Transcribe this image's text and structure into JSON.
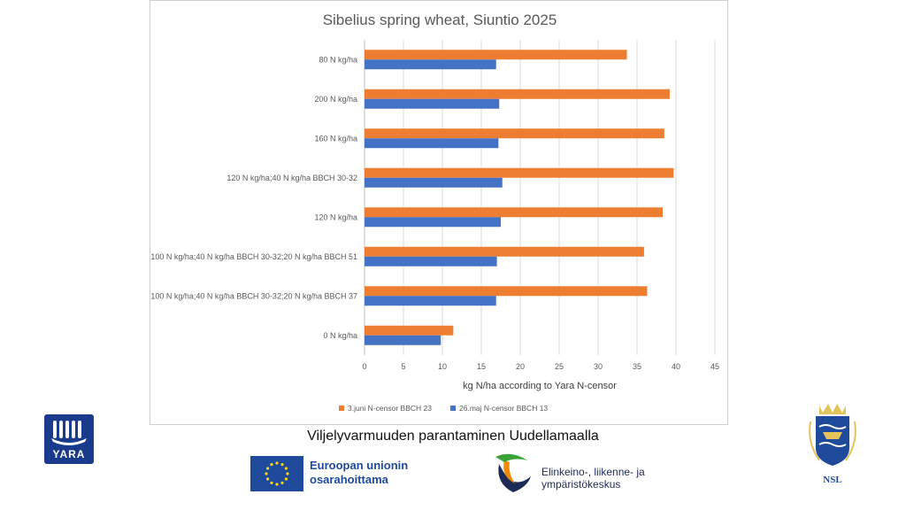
{
  "chart_data": {
    "type": "bar",
    "orientation": "horizontal",
    "title": "Sibelius spring wheat, Siuntio 2025",
    "xlabel": "kg N/ha according to Yara N-censor",
    "ylabel": "",
    "xlim": [
      0,
      45
    ],
    "xticks": [
      "0",
      "5",
      "10",
      "15",
      "20",
      "25",
      "30",
      "35",
      "40",
      "45"
    ],
    "grid": true,
    "legend_position": "bottom",
    "categories": [
      "80 N kg/ha",
      "200 N kg/ha",
      "160 N kg/ha",
      "120 N kg/ha;40 N kg/ha BBCH 30-32",
      "120 N kg/ha",
      "100 N kg/ha;40 N kg/ha BBCH 30-32;20 N kg/ha BBCH 51",
      "100 N kg/ha;40 N kg/ha BBCH 30-32;20 N kg/ha BBCH 37",
      "0 N kg/ha"
    ],
    "series": [
      {
        "name": "3.juni N-censor BBCH 23",
        "color": "#ed7d31",
        "values": [
          33.7,
          39.2,
          38.5,
          39.7,
          38.3,
          35.9,
          36.3,
          11.4
        ]
      },
      {
        "name": "26.maj N-censor BBCH 13",
        "color": "#4472c4",
        "values": [
          16.9,
          17.3,
          17.2,
          17.7,
          17.5,
          17.0,
          16.9,
          9.8
        ]
      }
    ]
  },
  "footer": {
    "project_title": "Viljelyvarmuuden parantaminen Uudellamaalla",
    "yara_logo": "YARA",
    "eu_text_line1": "Euroopan unionin",
    "eu_text_line2": "osarahoittama",
    "ely_text_line1": "Elinkeino-, liikenne- ja",
    "ely_text_line2": "ympäristökeskus",
    "nsl_logo": "NSL"
  }
}
